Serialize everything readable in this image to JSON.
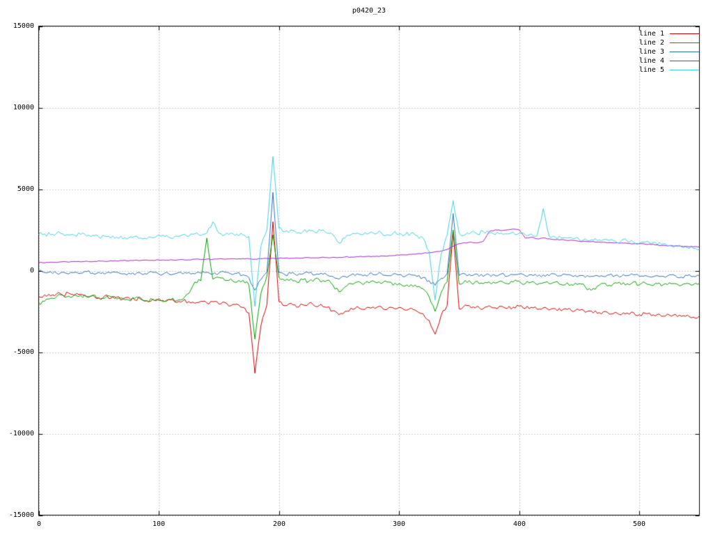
{
  "title": "p0420_23",
  "colors": {
    "background": "#ffffff",
    "grid": "#9a9a9a",
    "axis": "#000000",
    "text": "#000000"
  },
  "chart_data": {
    "type": "line",
    "title": "p0420_23",
    "xlabel": "",
    "ylabel": "",
    "xlim": [
      0,
      550
    ],
    "ylim": [
      -15000,
      15000
    ],
    "xticks": [
      0,
      100,
      200,
      300,
      400,
      500
    ],
    "yticks": [
      -15000,
      -10000,
      -5000,
      0,
      5000,
      10000,
      15000
    ],
    "grid": true,
    "legend_position": "top-right-inside",
    "x": {
      "start": 0,
      "step": 5
    },
    "series": [
      {
        "name": "line 1",
        "color": "#cc0000",
        "noise": 120,
        "values": [
          -1600,
          -1480,
          -1550,
          -1420,
          -1500,
          -1380,
          -1520,
          -1450,
          -1600,
          -1500,
          -1680,
          -1550,
          -1700,
          -1620,
          -1750,
          -1650,
          -1800,
          -1680,
          -1850,
          -1750,
          -1820,
          -1900,
          -1780,
          -1950,
          -1850,
          -1900,
          -2000,
          -1880,
          -1980,
          -1900,
          -2050,
          -1950,
          -2150,
          -2050,
          -2250,
          -2600,
          -6300,
          -3400,
          -2100,
          3000,
          -1900,
          -2150,
          -2000,
          -2250,
          -2100,
          -2000,
          -2180,
          -2060,
          -2250,
          -2450,
          -2700,
          -2500,
          -2300,
          -2200,
          -2380,
          -2260,
          -2320,
          -2200,
          -2380,
          -2280,
          -2250,
          -2420,
          -2300,
          -2500,
          -2650,
          -3050,
          -3900,
          -2750,
          -2150,
          2400,
          -2350,
          -2100,
          -2280,
          -2180,
          -2330,
          -2150,
          -2280,
          -2180,
          -2320,
          -2230,
          -2180,
          -2330,
          -2250,
          -2380,
          -2280,
          -2420,
          -2330,
          -2470,
          -2380,
          -2520,
          -2430,
          -2560,
          -2480,
          -2620,
          -2520,
          -2660,
          -2560,
          -2700,
          -2600,
          -2560,
          -2700,
          -2620,
          -2760,
          -2680,
          -2800,
          -2720,
          -2680,
          -2800,
          -2730,
          -2850,
          -2780
        ]
      },
      {
        "name": "line 2",
        "color": "#00a000",
        "noise": 120,
        "values": [
          -2000,
          -1880,
          -1700,
          -1600,
          -1500,
          -1560,
          -1460,
          -1520,
          -1600,
          -1540,
          -1650,
          -1700,
          -1600,
          -1740,
          -1690,
          -1800,
          -1700,
          -1760,
          -1850,
          -1780,
          -1700,
          -1880,
          -1790,
          -1840,
          -1750,
          -1400,
          -700,
          -620,
          2000,
          -520,
          -420,
          -600,
          -500,
          -700,
          -580,
          -880,
          -4200,
          -1400,
          -320,
          2200,
          -420,
          -620,
          -500,
          -700,
          -560,
          -650,
          -500,
          -700,
          -600,
          -900,
          -1300,
          -1000,
          -800,
          -700,
          -860,
          -740,
          -700,
          -800,
          -700,
          -900,
          -800,
          -950,
          -850,
          -1000,
          -1120,
          -1600,
          -2500,
          -1350,
          -700,
          2500,
          -820,
          -600,
          -760,
          -640,
          -800,
          -700,
          -760,
          -640,
          -800,
          -700,
          -640,
          -800,
          -700,
          -860,
          -740,
          -800,
          -700,
          -860,
          -740,
          -900,
          -800,
          -1000,
          -1200,
          -950,
          -780,
          -900,
          -740,
          -860,
          -800,
          -700,
          -860,
          -760,
          -900,
          -800,
          -860,
          -740,
          -800,
          -900,
          -780,
          -860,
          -800
        ]
      },
      {
        "name": "line 3",
        "color": "#2e6eb3",
        "noise": 100,
        "values": [
          0,
          -120,
          -60,
          -160,
          -90,
          -200,
          -110,
          -160,
          -60,
          -150,
          -100,
          -210,
          -150,
          -100,
          -200,
          -150,
          -260,
          -160,
          -210,
          -110,
          -200,
          -150,
          -260,
          -160,
          -210,
          -110,
          -200,
          -150,
          -100,
          -210,
          -150,
          -100,
          -200,
          -160,
          -260,
          -420,
          -1200,
          -550,
          -80,
          4800,
          -120,
          -260,
          -160,
          -300,
          -200,
          -150,
          -260,
          -160,
          -260,
          -360,
          -520,
          -360,
          -260,
          -200,
          -310,
          -210,
          -260,
          -160,
          -310,
          -210,
          -260,
          -360,
          -260,
          -360,
          -420,
          -620,
          -900,
          -480,
          -180,
          3500,
          -300,
          -200,
          -310,
          -210,
          -350,
          -250,
          -300,
          -200,
          -350,
          -250,
          -200,
          -310,
          -250,
          -350,
          -260,
          -310,
          -210,
          -310,
          -250,
          -360,
          -300,
          -410,
          -350,
          -300,
          -350,
          -260,
          -300,
          -350,
          -300,
          -250,
          -350,
          -300,
          -400,
          -310,
          -350,
          -260,
          -310,
          -400,
          -300,
          -350,
          -300
        ]
      },
      {
        "name": "line 4",
        "color": "#a020c8",
        "noise": 25,
        "values": [
          500,
          480,
          520,
          500,
          550,
          520,
          560,
          540,
          580,
          550,
          600,
          570,
          610,
          590,
          620,
          600,
          640,
          620,
          650,
          630,
          660,
          640,
          670,
          650,
          680,
          660,
          700,
          680,
          710,
          690,
          720,
          700,
          730,
          710,
          740,
          720,
          700,
          730,
          750,
          760,
          750,
          770,
          760,
          780,
          770,
          800,
          780,
          810,
          800,
          820,
          810,
          840,
          830,
          860,
          850,
          880,
          870,
          900,
          890,
          920,
          950,
          970,
          1000,
          1030,
          1060,
          1100,
          1150,
          1200,
          1300,
          1500,
          1650,
          1700,
          1750,
          1700,
          1800,
          2400,
          2500,
          2450,
          2500,
          2550,
          2500,
          2000,
          2050,
          1950,
          2000,
          1950,
          1900,
          1900,
          1850,
          1850,
          1800,
          1800,
          1780,
          1750,
          1750,
          1720,
          1700,
          1700,
          1680,
          1650,
          1650,
          1620,
          1600,
          1580,
          1550,
          1530,
          1520,
          1500,
          1480,
          1460,
          1450
        ]
      },
      {
        "name": "line 5",
        "color": "#3fd0e0",
        "noise": 130,
        "values": [
          2200,
          2260,
          2200,
          2300,
          2250,
          2200,
          2150,
          2220,
          2120,
          2160,
          2060,
          2120,
          2000,
          2060,
          1960,
          2010,
          2100,
          2000,
          1950,
          2010,
          2200,
          2100,
          2000,
          2110,
          2200,
          2100,
          2260,
          2150,
          2300,
          3000,
          2300,
          2200,
          2300,
          2250,
          2200,
          2100,
          -2200,
          1500,
          2500,
          7000,
          2600,
          2400,
          2500,
          2300,
          2400,
          2500,
          2350,
          2450,
          2300,
          2200,
          1700,
          2000,
          2200,
          2300,
          2200,
          2300,
          2250,
          2350,
          2200,
          2300,
          2250,
          2200,
          2300,
          2150,
          2000,
          1200,
          -1800,
          1000,
          2200,
          4300,
          2300,
          2200,
          2350,
          2250,
          2400,
          2300,
          2200,
          2300,
          2250,
          2350,
          2300,
          2200,
          2250,
          2150,
          3800,
          2100,
          2050,
          2000,
          2000,
          1950,
          1900,
          1950,
          1900,
          1850,
          1900,
          1850,
          1800,
          1850,
          1800,
          1750,
          1700,
          1750,
          1650,
          1600,
          1650,
          1550,
          1500,
          1450,
          1400,
          1350,
          1300
        ]
      }
    ]
  }
}
